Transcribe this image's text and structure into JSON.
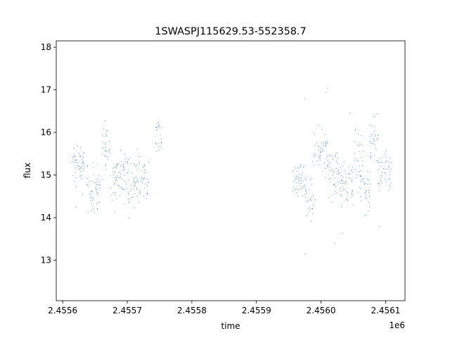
{
  "chart_data": {
    "type": "scatter",
    "title": "1SWASPJ115629.53-552358.7",
    "xlabel": "time",
    "ylabel": "flux",
    "x_offset_label": "1e6",
    "xlim": [
      2.45559,
      2.45613
    ],
    "ylim": [
      12.05,
      18.15
    ],
    "x_ticks": [
      2.4556,
      2.4557,
      2.4558,
      2.4559,
      2.456,
      2.4561
    ],
    "x_tick_labels": [
      "2.4556",
      "2.4557",
      "2.4558",
      "2.4559",
      "2.4560",
      "2.4561"
    ],
    "y_ticks": [
      13,
      14,
      15,
      16,
      17,
      18
    ],
    "y_tick_labels": [
      "13",
      "14",
      "15",
      "16",
      "17",
      "18"
    ],
    "grid": false,
    "legend": "none",
    "marker_color": "#1f77b4",
    "segments": [
      {
        "x_start": 2.455613,
        "x_end": 2.455633,
        "center": 15.25,
        "spread": 0.35
      },
      {
        "x_start": 2.455637,
        "x_end": 2.455658,
        "center": 14.7,
        "spread": 0.5
      },
      {
        "x_start": 2.45566,
        "x_end": 2.455673,
        "center": 15.7,
        "spread": 0.45
      },
      {
        "x_start": 2.455673,
        "x_end": 2.45569,
        "center": 15.0,
        "spread": 0.6
      },
      {
        "x_start": 2.45569,
        "x_end": 2.455712,
        "center": 14.9,
        "spread": 0.55
      },
      {
        "x_start": 2.455712,
        "x_end": 2.455733,
        "center": 14.9,
        "spread": 0.5
      },
      {
        "x_start": 2.455743,
        "x_end": 2.455753,
        "center": 15.9,
        "spread": 0.4
      },
      {
        "x_start": 2.455955,
        "x_end": 2.455975,
        "center": 14.9,
        "spread": 0.35
      },
      {
        "x_start": 2.455975,
        "x_end": 2.455988,
        "center": 14.4,
        "spread": 0.5
      },
      {
        "x_start": 2.455988,
        "x_end": 2.45601,
        "center": 15.5,
        "spread": 0.5
      },
      {
        "x_start": 2.45601,
        "x_end": 2.45603,
        "center": 15.0,
        "spread": 0.6
      },
      {
        "x_start": 2.45603,
        "x_end": 2.45605,
        "center": 14.8,
        "spread": 0.6
      },
      {
        "x_start": 2.45605,
        "x_end": 2.456065,
        "center": 15.3,
        "spread": 0.7
      },
      {
        "x_start": 2.456065,
        "x_end": 2.456075,
        "center": 14.6,
        "spread": 0.7
      },
      {
        "x_start": 2.456075,
        "x_end": 2.456088,
        "center": 16.0,
        "spread": 0.6
      },
      {
        "x_start": 2.456088,
        "x_end": 2.456108,
        "center": 15.1,
        "spread": 0.4
      }
    ]
  }
}
